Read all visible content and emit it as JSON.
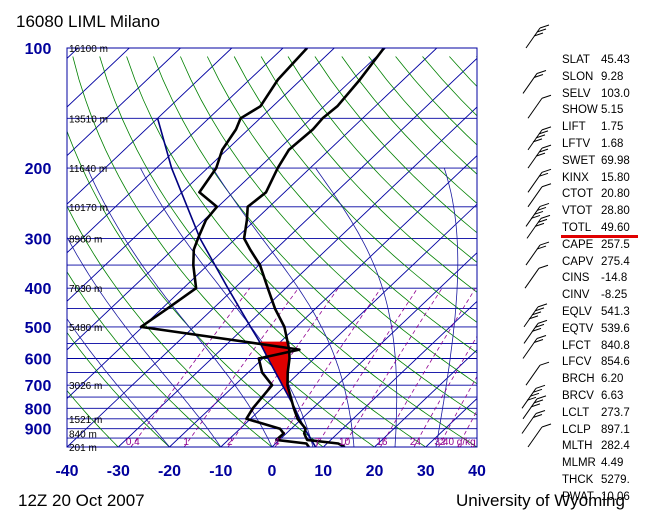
{
  "title": "16080 LIML Milano",
  "footer_left": "12Z 20 Oct 2007",
  "footer_right": "University of Wyoming",
  "colors": {
    "isobar": "#0000a0",
    "axis_label": "#00009c",
    "isotherm": "#0000a0",
    "dry_adiabat": "#008000",
    "moist_adiabat": "#1a1aa0",
    "mixing_ratio": "#900090",
    "temperature": "#000000",
    "dewpoint": "#000000",
    "parcel": "#000080",
    "cape": "#e00000"
  },
  "indices": [
    {
      "key": "SLAT",
      "value": "45.43"
    },
    {
      "key": "SLON",
      "value": "9.28"
    },
    {
      "key": "SELV",
      "value": "103.0"
    },
    {
      "key": "SHOW",
      "value": "5.15"
    },
    {
      "key": "LIFT",
      "value": "1.75"
    },
    {
      "key": "LFTV",
      "value": "1.68"
    },
    {
      "key": "SWET",
      "value": "69.98"
    },
    {
      "key": "KINX",
      "value": "15.80"
    },
    {
      "key": "CTOT",
      "value": "20.80"
    },
    {
      "key": "VTOT",
      "value": "28.80"
    },
    {
      "key": "TOTL",
      "value": "49.60"
    },
    {
      "key": "CAPE",
      "value": "257.5"
    },
    {
      "key": "CAPV",
      "value": "275.4"
    },
    {
      "key": "CINS",
      "value": "-14.8"
    },
    {
      "key": "CINV",
      "value": "-8.25"
    },
    {
      "key": "EQLV",
      "value": "541.3"
    },
    {
      "key": "EQTV",
      "value": "539.6"
    },
    {
      "key": "LFCT",
      "value": "840.8"
    },
    {
      "key": "LFCV",
      "value": "854.6"
    },
    {
      "key": "BRCH",
      "value": "6.20"
    },
    {
      "key": "BRCV",
      "value": "6.63"
    },
    {
      "key": "LCLT",
      "value": "273.7"
    },
    {
      "key": "LCLP",
      "value": "897.1"
    },
    {
      "key": "MLTH",
      "value": "282.4"
    },
    {
      "key": "MLMR",
      "value": "4.49"
    },
    {
      "key": "THCK",
      "value": "5279."
    },
    {
      "key": "PWAT",
      "value": "10.06"
    }
  ],
  "chart_data": {
    "type": "line",
    "subtype": "skew-T log-P",
    "xlabel": "",
    "ylabel": "",
    "xlim": [
      -40,
      40
    ],
    "ylim": [
      1000,
      100
    ],
    "y_scale": "log",
    "pressure_ticks": [
      {
        "p": 100,
        "label": "100"
      },
      {
        "p": 200,
        "label": "200"
      },
      {
        "p": 300,
        "label": "300"
      },
      {
        "p": 400,
        "label": "400"
      },
      {
        "p": 500,
        "label": "500"
      },
      {
        "p": 600,
        "label": "600"
      },
      {
        "p": 700,
        "label": "700"
      },
      {
        "p": 800,
        "label": "800"
      },
      {
        "p": 900,
        "label": "900"
      }
    ],
    "temperature_ticks": [
      {
        "t": -40,
        "label": "-40"
      },
      {
        "t": -30,
        "label": "-30"
      },
      {
        "t": -20,
        "label": "-20"
      },
      {
        "t": -10,
        "label": "-10"
      },
      {
        "t": 0,
        "label": "0"
      },
      {
        "t": 10,
        "label": "10"
      },
      {
        "t": 20,
        "label": "20"
      },
      {
        "t": 30,
        "label": "30"
      },
      {
        "t": 40,
        "label": "40"
      }
    ],
    "height_labels": [
      {
        "p": 100,
        "label": "16100 m"
      },
      {
        "p": 150,
        "label": "13510 m"
      },
      {
        "p": 200,
        "label": "11640 m"
      },
      {
        "p": 250,
        "label": "10170 m"
      },
      {
        "p": 300,
        "label": "8960 m"
      },
      {
        "p": 400,
        "label": "7030 m"
      },
      {
        "p": 500,
        "label": "5480 m"
      },
      {
        "p": 700,
        "label": "3026 m"
      },
      {
        "p": 850,
        "label": "1521 m"
      },
      {
        "p": 925,
        "label": "840 m"
      },
      {
        "p": 1000,
        "label": "201 m"
      }
    ],
    "mixing_ratio_labels": [
      "0.4",
      "1",
      "2",
      "4",
      "7",
      "10",
      "16",
      "24",
      "32",
      "40 g/kg"
    ],
    "series": [
      {
        "kind": "temperature",
        "points": [
          [
            1000,
            14.2
          ],
          [
            980,
            12.2
          ],
          [
            960,
            5.4
          ],
          [
            925,
            3.5
          ],
          [
            900,
            2.8
          ],
          [
            850,
            -0.8
          ],
          [
            800,
            -3.7
          ],
          [
            700,
            -9.7
          ],
          [
            650,
            -12.3
          ],
          [
            600,
            -14.8
          ],
          [
            570,
            -16.7
          ],
          [
            500,
            -22.3
          ],
          [
            450,
            -27.9
          ],
          [
            400,
            -33.5
          ],
          [
            350,
            -39.8
          ],
          [
            320,
            -44.9
          ],
          [
            300,
            -48.4
          ],
          [
            270,
            -51.6
          ],
          [
            250,
            -54.2
          ],
          [
            230,
            -53.6
          ],
          [
            200,
            -56.3
          ],
          [
            180,
            -57.9
          ],
          [
            160,
            -57.4
          ],
          [
            150,
            -57.8
          ],
          [
            140,
            -57.4
          ],
          [
            120,
            -58.5
          ],
          [
            100,
            -60.3
          ]
        ]
      },
      {
        "kind": "dewpoint",
        "points": [
          [
            1000,
            7.2
          ],
          [
            980,
            6.0
          ],
          [
            960,
            -0.6
          ],
          [
            925,
            -0.5
          ],
          [
            900,
            -2.2
          ],
          [
            850,
            -10.8
          ],
          [
            800,
            -11.7
          ],
          [
            700,
            -12.7
          ],
          [
            650,
            -17.3
          ],
          [
            600,
            -20.8
          ],
          [
            570,
            -14.7
          ],
          [
            500,
            -50.3
          ],
          [
            450,
            -48.9
          ],
          [
            400,
            -47.5
          ],
          [
            350,
            -52.8
          ],
          [
            320,
            -55.9
          ],
          [
            300,
            -57.4
          ],
          [
            270,
            -59.6
          ],
          [
            250,
            -60.2
          ],
          [
            230,
            -66.6
          ],
          [
            200,
            -68.3
          ],
          [
            180,
            -70.9
          ],
          [
            160,
            -72.4
          ],
          [
            150,
            -73.8
          ],
          [
            140,
            -72.4
          ],
          [
            120,
            -74.5
          ],
          [
            100,
            -75.3
          ]
        ]
      },
      {
        "kind": "parcel",
        "points": [
          [
            1000,
            8.5
          ],
          [
            900,
            2.6
          ],
          [
            850,
            -0.4
          ],
          [
            800,
            -3.5
          ],
          [
            700,
            -10.7
          ],
          [
            600,
            -19.0
          ],
          [
            541,
            -24.5
          ],
          [
            500,
            -28.9
          ],
          [
            400,
            -41.3
          ],
          [
            300,
            -57.0
          ],
          [
            200,
            -77.0
          ],
          [
            150,
            -90.0
          ]
        ]
      }
    ],
    "cape_region": {
      "lfc_p": 840.8,
      "el_p": 541.3
    }
  }
}
